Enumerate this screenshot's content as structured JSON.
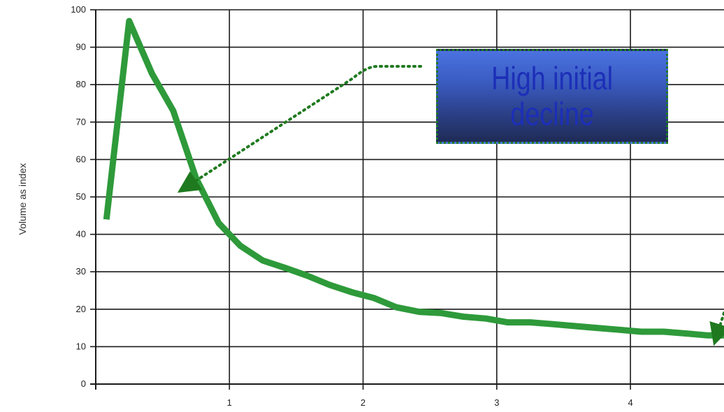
{
  "chart_data": {
    "type": "line",
    "title": "",
    "xlabel": "",
    "ylabel": "Volume as index",
    "xlim": [
      0,
      4.7
    ],
    "ylim": [
      0,
      100
    ],
    "x_ticks": [
      1,
      2,
      3,
      4
    ],
    "y_ticks": [
      0,
      10,
      20,
      30,
      40,
      50,
      60,
      70,
      80,
      90,
      100
    ],
    "grid": true,
    "series": [
      {
        "color": "#2e9a3a",
        "points": [
          [
            0.08,
            44
          ],
          [
            0.25,
            97
          ],
          [
            0.42,
            83
          ],
          [
            0.58,
            73
          ],
          [
            0.75,
            55
          ],
          [
            0.92,
            43
          ],
          [
            1.08,
            37
          ],
          [
            1.25,
            33
          ],
          [
            1.42,
            31
          ],
          [
            1.58,
            29
          ],
          [
            1.75,
            26.5
          ],
          [
            1.92,
            24.5
          ],
          [
            2.08,
            23
          ],
          [
            2.25,
            20.5
          ],
          [
            2.42,
            19.3
          ],
          [
            2.58,
            19
          ],
          [
            2.75,
            18
          ],
          [
            2.92,
            17.5
          ],
          [
            3.08,
            16.5
          ],
          [
            3.25,
            16.5
          ],
          [
            3.42,
            16
          ],
          [
            3.58,
            15.5
          ],
          [
            3.75,
            15
          ],
          [
            3.92,
            14.5
          ],
          [
            4.08,
            14
          ],
          [
            4.25,
            14
          ],
          [
            4.42,
            13.5
          ],
          [
            4.58,
            13
          ],
          [
            4.7,
            13
          ]
        ]
      }
    ],
    "annotations": [
      {
        "text": "High initial\ndecline",
        "points_to": [
          0.65,
          52
        ]
      }
    ]
  }
}
